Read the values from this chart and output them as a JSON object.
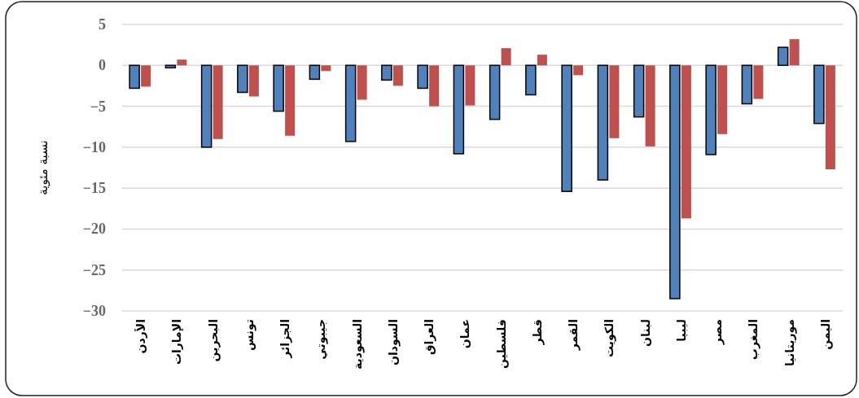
{
  "chart_data": {
    "type": "bar",
    "ylabel": "نسبة مئوية",
    "categories": [
      "الأردن",
      "الإمارات",
      "البحرين",
      "تونس",
      "الجزائر",
      "جيبوتي",
      "السعودية",
      "السودان",
      "العراق",
      "عمان",
      "فلسطين",
      "قطر",
      "القمر",
      "الكويت",
      "لبنان",
      "ليبيا",
      "مصر",
      "المغرب",
      "موريتانيا",
      "اليمن"
    ],
    "series": [
      {
        "color": "#4f81bd",
        "values": [
          -2.8,
          -0.3,
          -10,
          -3.3,
          -5.6,
          -1.7,
          -9.3,
          -1.8,
          -2.8,
          -10.8,
          -6.6,
          -3.6,
          -15.4,
          -14,
          -6.3,
          -28.5,
          -10.9,
          -4.7,
          2.2,
          -7.1
        ]
      },
      {
        "color": "#c0504d",
        "values": [
          -2.6,
          0.7,
          -9,
          -3.8,
          -8.6,
          -0.7,
          -4.2,
          -2.5,
          -5,
          -4.9,
          2.1,
          1.3,
          -1.2,
          -8.9,
          -9.9,
          -18.7,
          -8.4,
          -4.1,
          3.2,
          -12.7
        ]
      }
    ],
    "ylim": [
      -30,
      5
    ],
    "yticks": [
      5,
      0,
      -5,
      -10,
      -15,
      -20,
      -25,
      -30
    ],
    "grid": "y"
  }
}
